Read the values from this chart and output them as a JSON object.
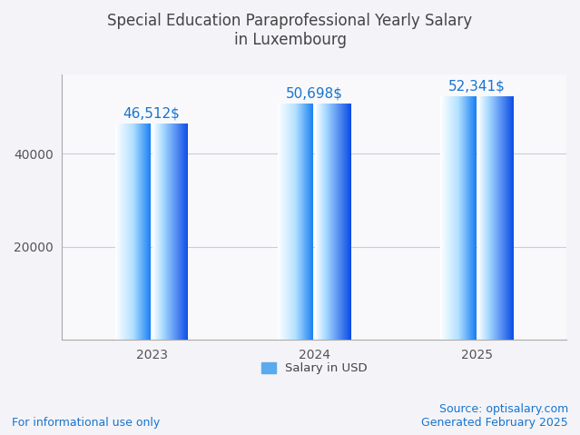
{
  "title_line1": "Special Education Paraprofessional Yearly Salary",
  "title_line2": "in Luxembourg",
  "years": [
    "2023",
    "2024",
    "2025"
  ],
  "values": [
    46512,
    50698,
    52341
  ],
  "value_labels": [
    "46,512$",
    "50,698$",
    "52,341$"
  ],
  "ylim": [
    0,
    57000
  ],
  "yticks": [
    20000,
    40000
  ],
  "ytick_labels": [
    "20000",
    "40000"
  ],
  "value_color": "#1874CD",
  "legend_label": "Salary in USD",
  "legend_color": "#5BAAEE",
  "footer_left": "For informational use only",
  "footer_right": "Source: optisalary.com\nGenerated February 2025",
  "footer_color": "#1874CD",
  "bg_color": "#F4F4F8",
  "plot_bg_color": "#F9F9FC",
  "title_color": "#444444",
  "grid_color": "#CCCCDD",
  "title_fontsize": 12,
  "tick_fontsize": 10,
  "footer_fontsize": 9,
  "value_fontsize": 11
}
